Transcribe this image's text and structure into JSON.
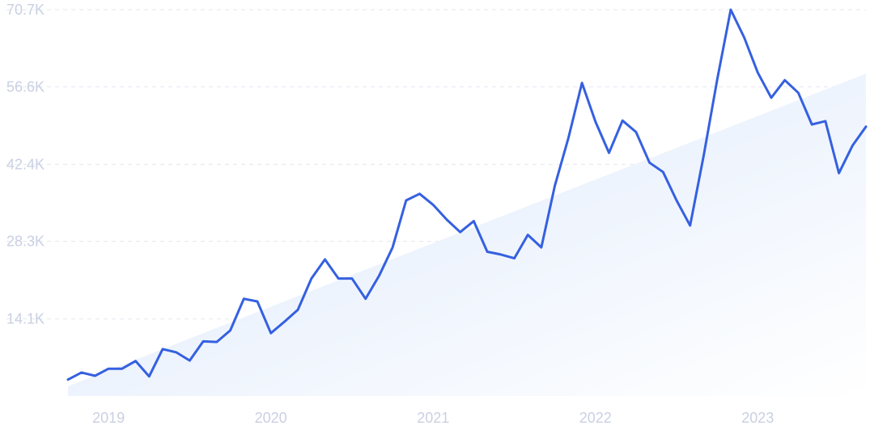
{
  "chart_data": {
    "type": "line",
    "title": "",
    "xlabel": "",
    "ylabel": "",
    "y_ticks": [
      "14.1K",
      "28.3K",
      "42.4K",
      "56.6K",
      "70.7K"
    ],
    "y_tick_values": [
      14100,
      28300,
      42400,
      56600,
      70700
    ],
    "x_ticks": [
      "2019",
      "2020",
      "2021",
      "2022",
      "2023"
    ],
    "x_tick_values": [
      "2019-01",
      "2020-01",
      "2021-01",
      "2022-01",
      "2023-01"
    ],
    "ylim": [
      0,
      70700
    ],
    "xlim": [
      "2018-10",
      "2023-09"
    ],
    "grid": "horizontal-dashed",
    "legend": "none",
    "colors": {
      "line": "#3560e0",
      "trend_fill_top": "#dce8fb",
      "trend_fill_bottom": "#ffffff"
    },
    "trend_band": {
      "x": [
        "2018-10",
        "2023-09"
      ],
      "y": [
        1800,
        59000
      ]
    },
    "series": [
      {
        "x": [
          "2018-10",
          "2018-11",
          "2018-12",
          "2019-01",
          "2019-02",
          "2019-03",
          "2019-04",
          "2019-05",
          "2019-06",
          "2019-07",
          "2019-08",
          "2019-09",
          "2019-10",
          "2019-11",
          "2019-12",
          "2020-01",
          "2020-02",
          "2020-03",
          "2020-04",
          "2020-05",
          "2020-06",
          "2020-07",
          "2020-08",
          "2020-09",
          "2020-10",
          "2020-11",
          "2020-12",
          "2021-01",
          "2021-02",
          "2021-03",
          "2021-04",
          "2021-05",
          "2021-06",
          "2021-07",
          "2021-08",
          "2021-09",
          "2021-10",
          "2021-11",
          "2021-12",
          "2022-01",
          "2022-02",
          "2022-03",
          "2022-04",
          "2022-05",
          "2022-06",
          "2022-07",
          "2022-08",
          "2022-09",
          "2022-10",
          "2022-11",
          "2022-12",
          "2023-01",
          "2023-02",
          "2023-03",
          "2023-04",
          "2023-05",
          "2023-06",
          "2023-07",
          "2023-08",
          "2023-09"
        ],
        "values": [
          3000,
          4300,
          3700,
          5000,
          5000,
          6400,
          3600,
          8600,
          8000,
          6500,
          10000,
          9900,
          12000,
          17800,
          17300,
          11500,
          13600,
          15800,
          21500,
          25000,
          21500,
          21500,
          17800,
          22000,
          27200,
          35800,
          37000,
          35000,
          32300,
          30000,
          32000,
          26400,
          25900,
          25200,
          29500,
          27200,
          38500,
          47200,
          57300,
          50200,
          44500,
          50400,
          48300,
          42700,
          41000,
          35800,
          31200,
          44000,
          57900,
          70700,
          65600,
          59200,
          54600,
          57800,
          55500,
          49700,
          50300,
          40800,
          45800,
          49300
        ]
      }
    ]
  }
}
